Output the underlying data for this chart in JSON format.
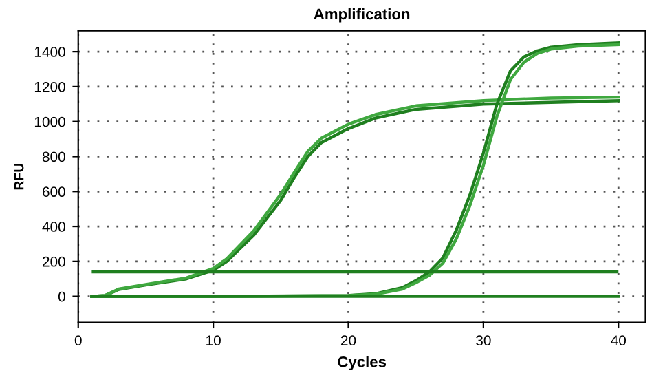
{
  "chart_data": {
    "type": "line",
    "title": "Amplification",
    "xlabel": "Cycles",
    "ylabel": "RFU",
    "x": [
      1,
      2,
      3,
      5,
      8,
      10,
      11,
      13,
      15,
      16,
      17,
      18,
      20,
      22,
      25,
      30,
      35,
      40
    ],
    "series": [
      {
        "color": "#1f7f1f",
        "values": [
          0,
          5,
          40,
          65,
          100,
          150,
          200,
          350,
          550,
          680,
          800,
          880,
          960,
          1020,
          1070,
          1100,
          1110,
          1120
        ]
      },
      {
        "color": "#3fa83f",
        "values": [
          0,
          5,
          42,
          68,
          105,
          160,
          215,
          375,
          585,
          710,
          830,
          905,
          985,
          1040,
          1090,
          1120,
          1135,
          1140
        ]
      },
      {
        "color": "#1f7f1f",
        "x": [
          1,
          10,
          20,
          22,
          24,
          25,
          26,
          27,
          28,
          29,
          30,
          31,
          32,
          33,
          34,
          35,
          37,
          40
        ],
        "values": [
          0,
          0,
          5,
          15,
          50,
          90,
          140,
          220,
          380,
          580,
          820,
          1100,
          1290,
          1370,
          1405,
          1425,
          1440,
          1450
        ]
      },
      {
        "color": "#3fa83f",
        "x": [
          1,
          10,
          20,
          22,
          24,
          25,
          26,
          27,
          28,
          29,
          30,
          31,
          32,
          33,
          34,
          35,
          37,
          40
        ],
        "values": [
          0,
          0,
          4,
          12,
          42,
          78,
          120,
          190,
          330,
          520,
          750,
          1030,
          1240,
          1340,
          1390,
          1415,
          1432,
          1440
        ]
      },
      {
        "color": "#1f7f1f",
        "x": [
          1,
          40
        ],
        "values": [
          0,
          0
        ]
      }
    ],
    "ref_lines": [
      {
        "axis": "y",
        "value": 140,
        "color": "#1f7f1f"
      }
    ],
    "xlim": [
      0,
      42
    ],
    "ylim": [
      -150,
      1520
    ],
    "xticks": [
      0,
      10,
      20,
      30,
      40
    ],
    "yticks": [
      0,
      200,
      400,
      600,
      800,
      1000,
      1200,
      1400
    ],
    "grid": true,
    "line_style": "solid",
    "legend": false
  }
}
